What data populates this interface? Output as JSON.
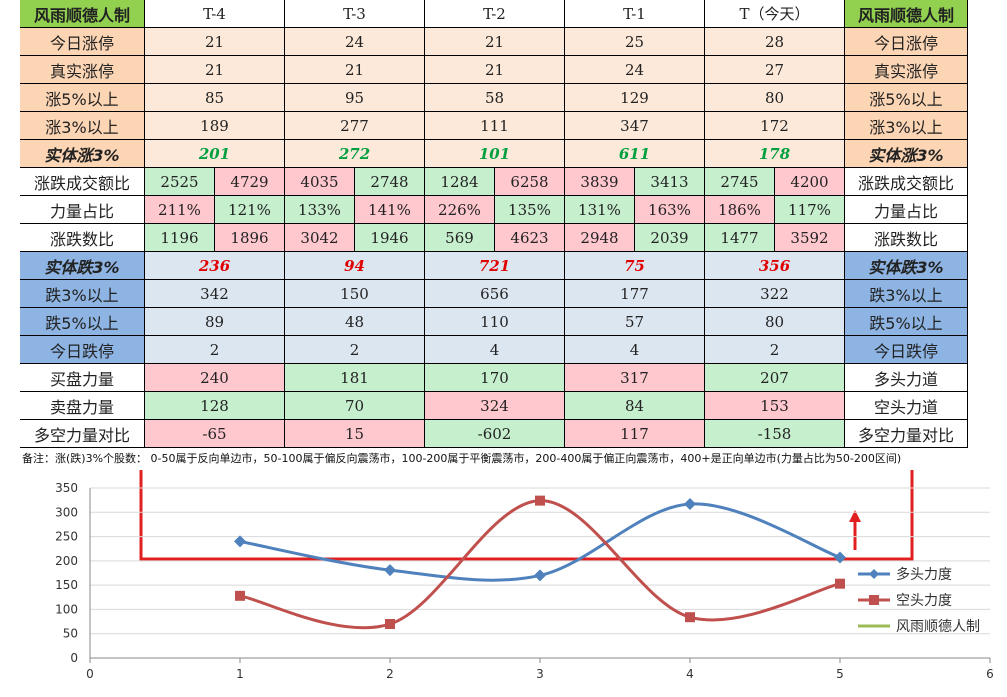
{
  "table": {
    "header": [
      "风雨顺德人制",
      "T-4",
      "T-3",
      "T-2",
      "T-1",
      "T（今天）",
      "风雨顺德人制"
    ],
    "header_bg": "#92d050",
    "rows": [
      {
        "label": "今日涨停",
        "values": [
          21,
          24,
          21,
          25,
          28
        ],
        "right": "今日涨停",
        "label_bg": "#fcd5b4",
        "bg": "#fde9d9"
      },
      {
        "label": "真实涨停",
        "values": [
          21,
          21,
          21,
          24,
          27
        ],
        "right": "真实涨停",
        "label_bg": "#fcd5b4",
        "bg": "#fde9d9"
      },
      {
        "label": "涨5%以上",
        "values": [
          85,
          95,
          58,
          129,
          80
        ],
        "right": "涨5%以上",
        "label_bg": "#fcd5b4",
        "bg": "#fde9d9"
      },
      {
        "label": "涨3%以上",
        "values": [
          189,
          277,
          111,
          347,
          172
        ],
        "right": "涨3%以上",
        "label_bg": "#fcd5b4",
        "bg": "#fde9d9"
      },
      {
        "label": "实体涨3%",
        "values": [
          201,
          272,
          101,
          611,
          178
        ],
        "right": "实体涨3%",
        "label_bg": "#fcd5b4",
        "bg": "#fde9d9",
        "emphasis": true,
        "text_color": "#00a040"
      },
      {
        "label": "涨跌成交额比",
        "values": [
          2525,
          4729,
          4035,
          2748,
          1284,
          6258,
          3839,
          3413,
          2745,
          4200
        ],
        "right": "涨跌成交额比",
        "cell_colors": [
          "#c6efce",
          "#ffc7ce",
          "#ffc7ce",
          "#c6efce",
          "#c6efce",
          "#ffc7ce",
          "#ffc7ce",
          "#c6efce",
          "#c6efce",
          "#ffc7ce"
        ]
      },
      {
        "label": "力量占比",
        "values": [
          "211%",
          "121%",
          "133%",
          "141%",
          "226%",
          "135%",
          "131%",
          "163%",
          "186%",
          "117%"
        ],
        "right": "力量占比",
        "cell_colors": [
          "#ffc7ce",
          "#c6efce",
          "#c6efce",
          "#ffc7ce",
          "#ffc7ce",
          "#c6efce",
          "#c6efce",
          "#ffc7ce",
          "#ffc7ce",
          "#c6efce"
        ]
      },
      {
        "label": "涨跌数比",
        "values": [
          1196,
          1896,
          3042,
          1946,
          569,
          4623,
          2948,
          2039,
          1477,
          3592
        ],
        "right": "涨跌数比",
        "cell_colors": [
          "#c6efce",
          "#ffc7ce",
          "#ffc7ce",
          "#c6efce",
          "#c6efce",
          "#ffc7ce",
          "#ffc7ce",
          "#c6efce",
          "#c6efce",
          "#ffc7ce"
        ]
      },
      {
        "label": "实体跌3%",
        "values": [
          236,
          94,
          721,
          75,
          356
        ],
        "right": "实体跌3%",
        "label_bg": "#8db4e2",
        "bg": "#dce6f1",
        "emphasis": true,
        "text_color": "#e00000"
      },
      {
        "label": "跌3%以上",
        "values": [
          342,
          150,
          656,
          177,
          322
        ],
        "right": "跌3%以上",
        "label_bg": "#8db4e2",
        "bg": "#dce6f1"
      },
      {
        "label": "跌5%以上",
        "values": [
          89,
          48,
          110,
          57,
          80
        ],
        "right": "跌5%以上",
        "label_bg": "#8db4e2",
        "bg": "#dce6f1"
      },
      {
        "label": "今日跌停",
        "values": [
          2,
          2,
          4,
          4,
          2
        ],
        "right": "今日跌停",
        "label_bg": "#8db4e2",
        "bg": "#dce6f1"
      },
      {
        "label": "买盘力量",
        "values": [
          240,
          181,
          170,
          317,
          207
        ],
        "right": "多头力道",
        "cell_colors": [
          "#ffc7ce",
          "#c6efce",
          "#c6efce",
          "#ffc7ce",
          "#c6efce"
        ]
      },
      {
        "label": "卖盘力量",
        "values": [
          128,
          70,
          324,
          84,
          153
        ],
        "right": "空头力道",
        "cell_colors": [
          "#c6efce",
          "#c6efce",
          "#ffc7ce",
          "#c6efce",
          "#ffc7ce"
        ]
      },
      {
        "label": "多空力量对比",
        "values": [
          -65,
          15,
          -602,
          117,
          -158
        ],
        "right": "多空力量对比",
        "cell_colors": [
          "#ffc7ce",
          "#ffc7ce",
          "#c6efce",
          "#ffc7ce",
          "#c6efce"
        ]
      }
    ],
    "note": "备注：涨(跌)3%个股数： 0-50属于反向单边市，50-100属于偏反向震荡市，100-200属于平衡震荡市，200-400属于偏正向震荡市，400+是正向单边市(力量占比为50-200区间)"
  },
  "chart_data": {
    "type": "line",
    "x": [
      1,
      2,
      3,
      4,
      5
    ],
    "series": [
      {
        "name": "多头力度",
        "color": "#4f81bd",
        "marker": "diamond",
        "values": [
          240,
          181,
          170,
          317,
          207
        ]
      },
      {
        "name": "空头力度",
        "color": "#c0504d",
        "marker": "square",
        "values": [
          128,
          70,
          324,
          84,
          153
        ]
      },
      {
        "name": "风雨顺德人制",
        "color": "#9bbb59"
      }
    ],
    "xlim": [
      0,
      6
    ],
    "xticks": [
      0,
      1,
      2,
      3,
      4,
      5,
      6
    ],
    "ylim": [
      0,
      350
    ],
    "yticks": [
      0,
      50,
      100,
      150,
      200,
      250,
      300,
      350
    ],
    "grid": true,
    "smooth": true,
    "legend": "right"
  }
}
